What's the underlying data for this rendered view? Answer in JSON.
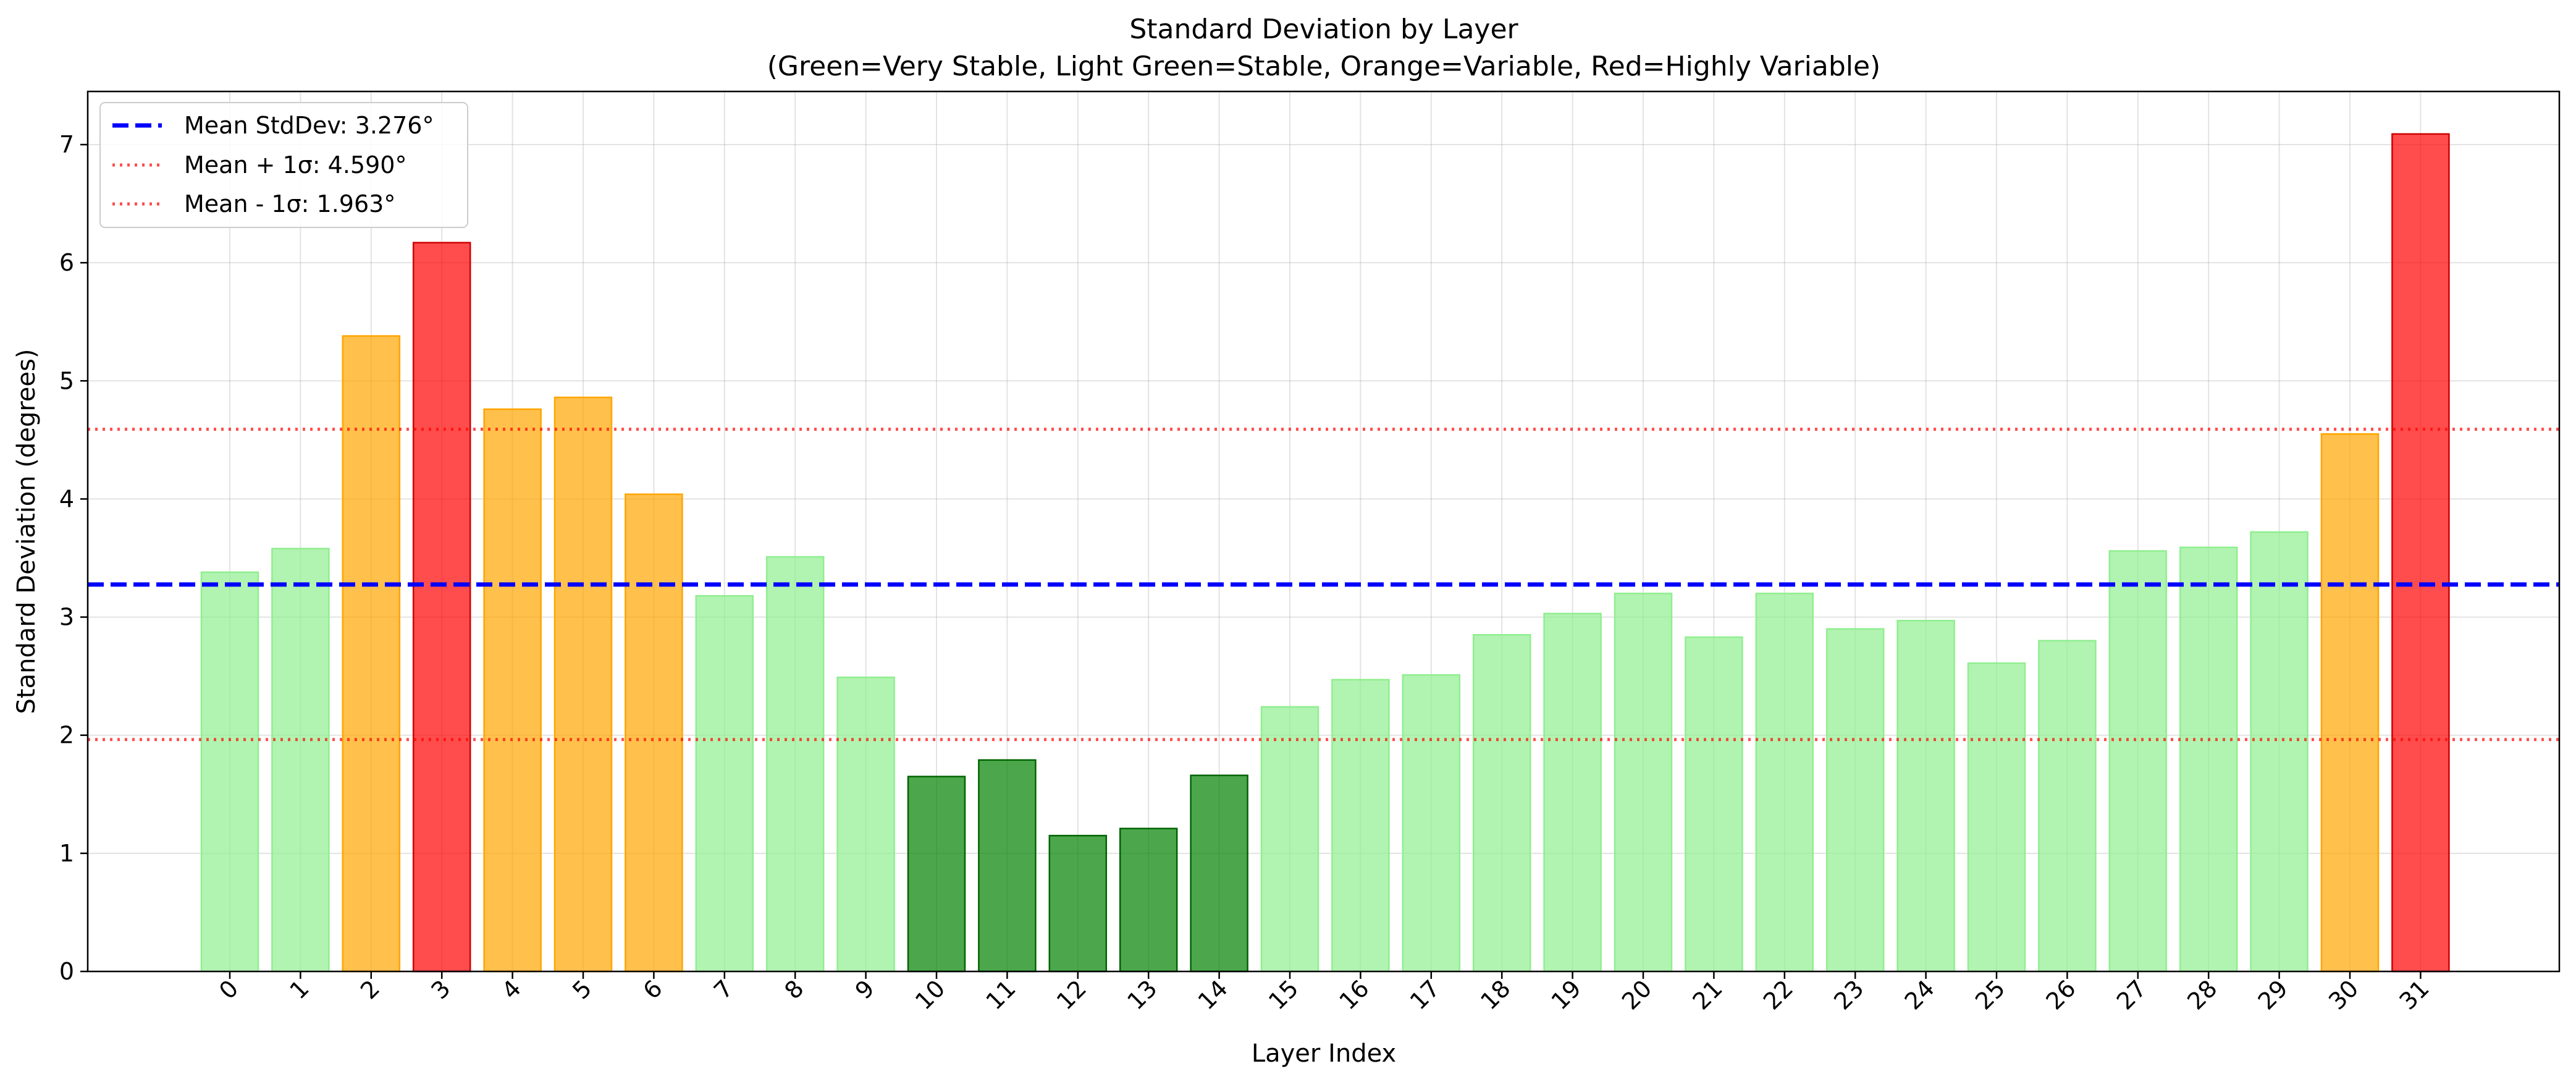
{
  "chart_data": {
    "type": "bar",
    "title": "Standard Deviation by Layer",
    "subtitle": "(Green=Very Stable, Light Green=Stable, Orange=Variable, Red=Highly Variable)",
    "xlabel": "Layer Index",
    "ylabel": "Standard Deviation (degrees)",
    "ylim": [
      0,
      7.45
    ],
    "yticks": [
      0,
      1,
      2,
      3,
      4,
      5,
      6,
      7
    ],
    "grid": true,
    "legend_position": "top-left",
    "categories": [
      "0",
      "1",
      "2",
      "3",
      "4",
      "5",
      "6",
      "7",
      "8",
      "9",
      "10",
      "11",
      "12",
      "13",
      "14",
      "15",
      "16",
      "17",
      "18",
      "19",
      "20",
      "21",
      "22",
      "23",
      "24",
      "25",
      "26",
      "27",
      "28",
      "29",
      "30",
      "31"
    ],
    "values": [
      3.38,
      3.58,
      5.38,
      6.17,
      4.76,
      4.86,
      4.04,
      3.18,
      3.51,
      2.49,
      1.65,
      1.79,
      1.15,
      1.21,
      1.66,
      2.24,
      2.47,
      2.51,
      2.85,
      3.03,
      3.2,
      2.83,
      3.2,
      2.9,
      2.97,
      2.61,
      2.8,
      3.56,
      3.59,
      3.72,
      4.55,
      7.09
    ],
    "categories_stability": [
      "stable",
      "stable",
      "variable",
      "highly_variable",
      "variable",
      "variable",
      "variable",
      "stable",
      "stable",
      "stable",
      "very_stable",
      "very_stable",
      "very_stable",
      "very_stable",
      "very_stable",
      "stable",
      "stable",
      "stable",
      "stable",
      "stable",
      "stable",
      "stable",
      "stable",
      "stable",
      "stable",
      "stable",
      "stable",
      "stable",
      "stable",
      "stable",
      "variable",
      "highly_variable"
    ],
    "colors": {
      "very_stable": {
        "fill": "#008000",
        "stroke": "#006400"
      },
      "stable": {
        "fill": "#90ee90",
        "stroke": "#90ee90"
      },
      "variable": {
        "fill": "#ffa500",
        "stroke": "#ffa500"
      },
      "highly_variable": {
        "fill": "#ff0000",
        "stroke": "#cc0000"
      }
    },
    "reference_lines": [
      {
        "value": 3.276,
        "label": "Mean StdDev: 3.276°",
        "color": "#0000ff",
        "style": "dashed"
      },
      {
        "value": 4.59,
        "label": "Mean + 1σ: 4.590°",
        "color": "#ff0000",
        "style": "dotted"
      },
      {
        "value": 1.963,
        "label": "Mean - 1σ: 1.963°",
        "color": "#ff0000",
        "style": "dotted"
      }
    ]
  }
}
